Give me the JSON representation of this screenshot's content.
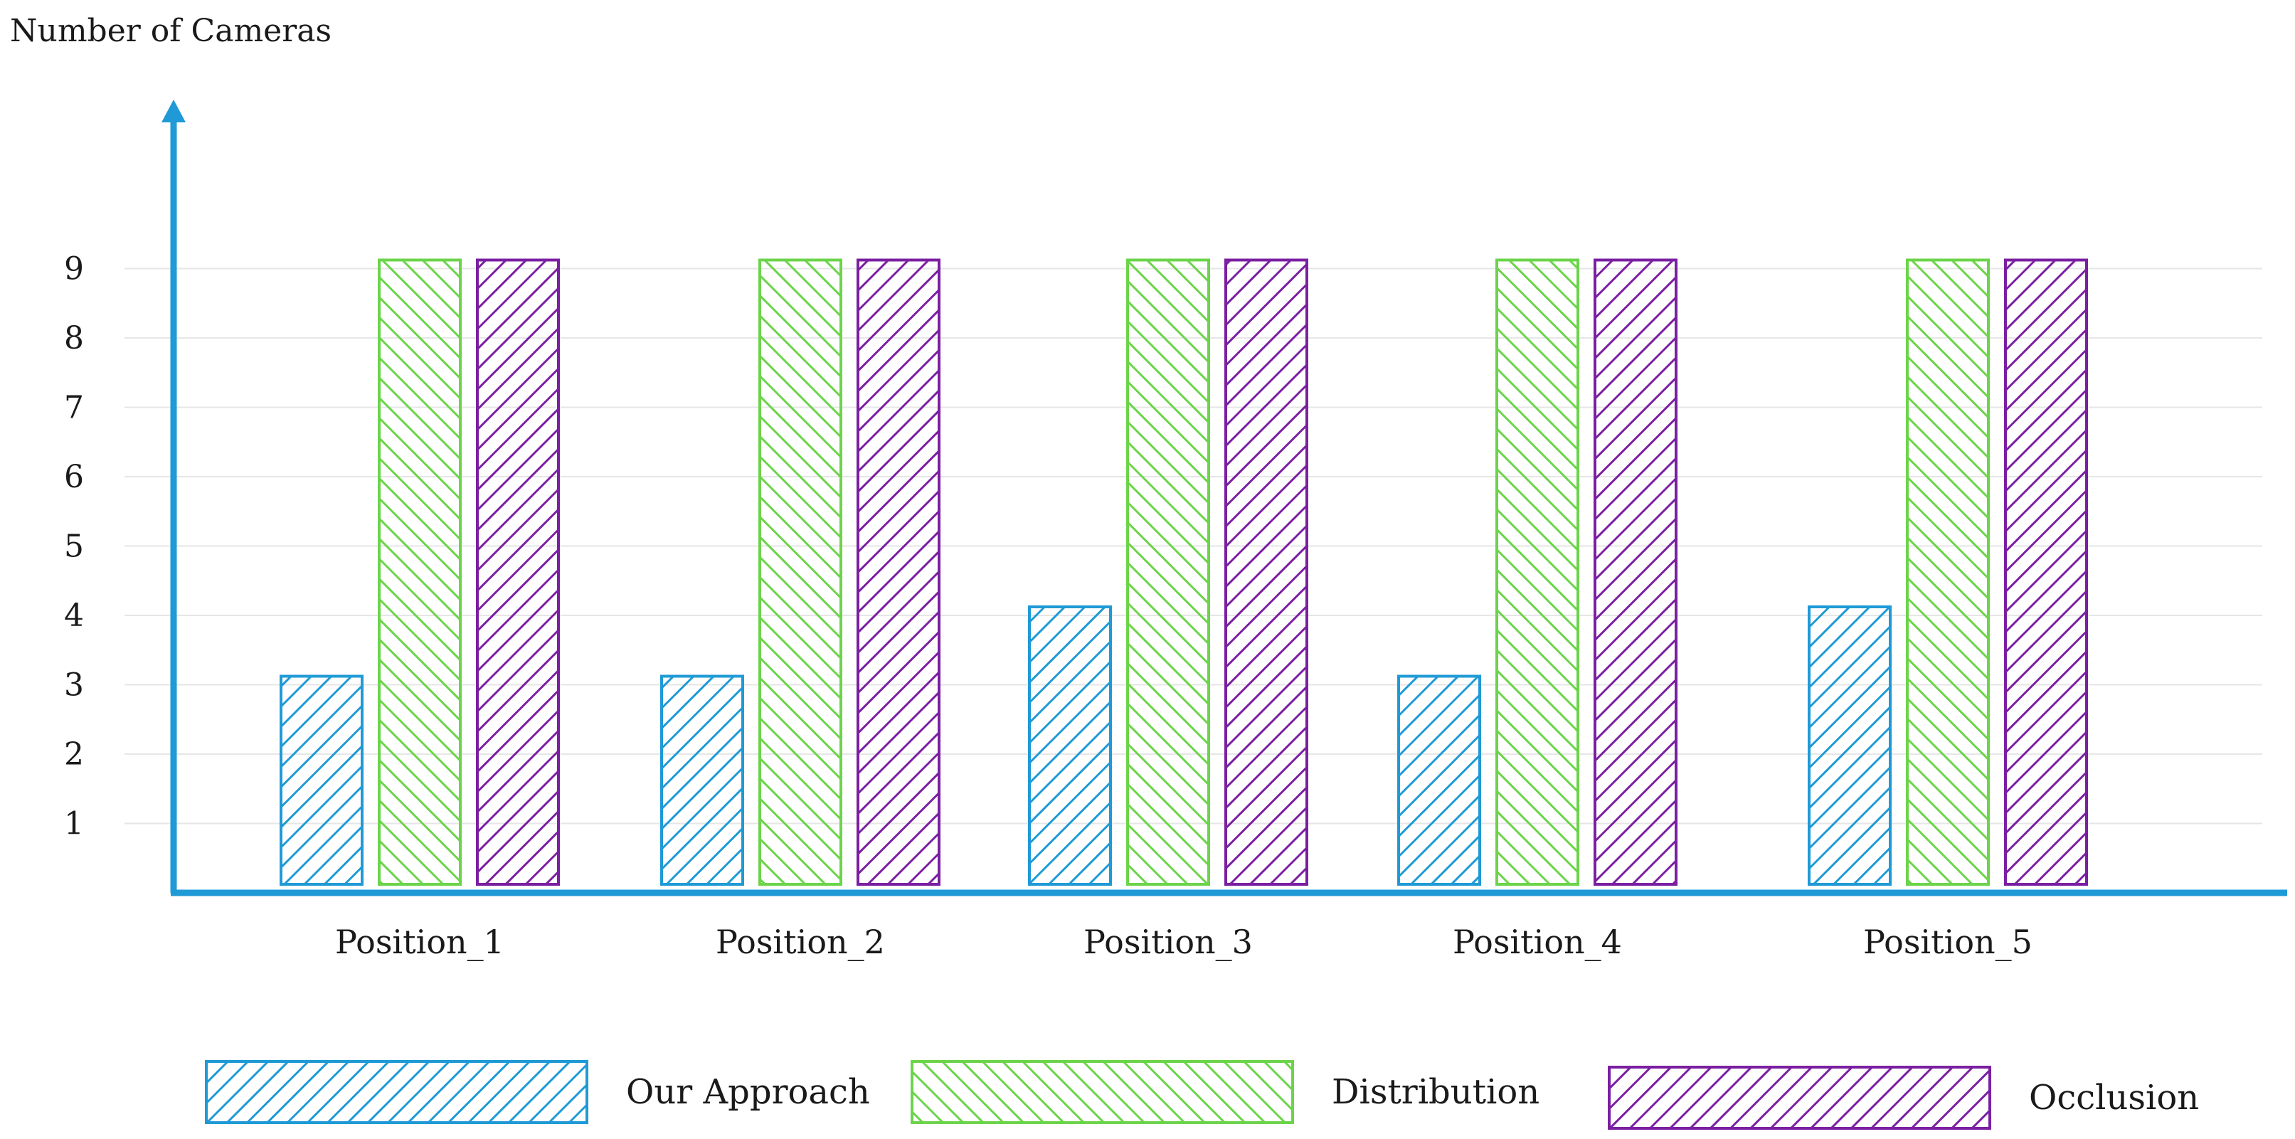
{
  "chart_data": {
    "type": "bar",
    "title": "",
    "xlabel": "",
    "ylabel": "Number of Cameras",
    "categories": [
      "Position_1",
      "Position_2",
      "Position_3",
      "Position_4",
      "Position_5"
    ],
    "series": [
      {
        "name": "Our Approach",
        "color": "#1f9ad6",
        "values": [
          3,
          3,
          4,
          3,
          4
        ]
      },
      {
        "name": "Distribution",
        "color": "#6cd44a",
        "values": [
          9,
          9,
          9,
          9,
          9
        ]
      },
      {
        "name": "Occlusion",
        "color": "#7b1fa2",
        "values": [
          9,
          9,
          9,
          9,
          9
        ]
      }
    ],
    "yticks": [
      1,
      2,
      3,
      4,
      5,
      6,
      7,
      8,
      9
    ],
    "ylim": [
      0,
      9
    ],
    "grid": true,
    "legend_position": "bottom",
    "axis_color": "#1f9ad6",
    "pattern": "diagonal-hatch"
  }
}
